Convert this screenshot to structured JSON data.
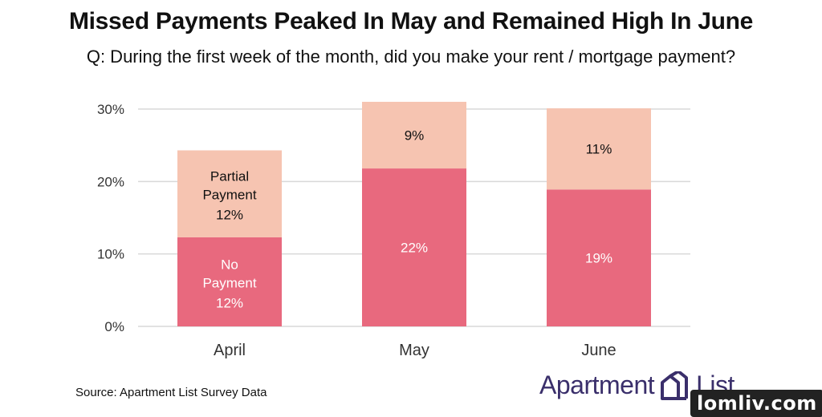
{
  "title": "Missed Payments Peaked In May and Remained High In June",
  "subtitle": "Q: During the first week of the month, did you make your rent / mortgage payment?",
  "source": "Source: Apartment List Survey Data",
  "logo": {
    "text1": "Apartment",
    "text2": "List"
  },
  "watermark": "lomliv.com",
  "colors": {
    "no_payment": "#e8697e",
    "partial_payment": "#f6c4b1",
    "grid": "#d9d9d9",
    "logo": "#3a2f6b"
  },
  "chart_data": {
    "type": "bar",
    "stacked": true,
    "categories": [
      "April",
      "May",
      "June"
    ],
    "series": [
      {
        "name": "No Payment",
        "values": [
          12.3,
          21.8,
          18.9
        ],
        "labels": [
          "12%",
          "22%",
          "19%"
        ]
      },
      {
        "name": "Partial Payment",
        "values": [
          12.0,
          9.2,
          11.2
        ],
        "labels": [
          "12%",
          "9%",
          "11%"
        ]
      }
    ],
    "yticks": [
      0,
      10,
      20,
      30
    ],
    "ytick_labels": [
      "0%",
      "10%",
      "20%",
      "30%"
    ],
    "ylim": [
      0,
      30
    ],
    "grid": true,
    "legend": "inline-labels-first-bar",
    "xlabel": "",
    "ylabel": ""
  }
}
